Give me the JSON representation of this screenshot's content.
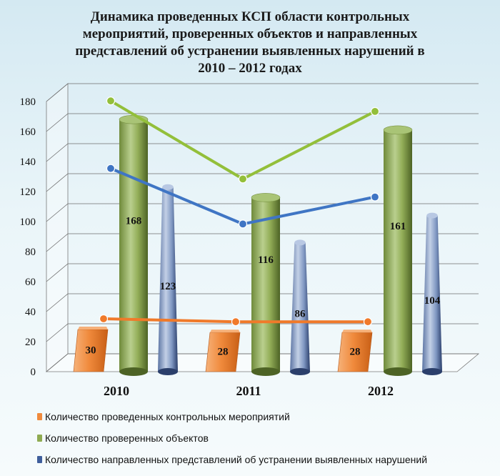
{
  "chart_data": {
    "type": "bar",
    "title_lines": [
      "Динамика проведенных КСП области контрольных",
      "мероприятий,  проверенных объектов и направленных",
      "представлений об устранении выявленных нарушений в",
      "2010 – 2012 годах"
    ],
    "categories": [
      "2010",
      "2011",
      "2012"
    ],
    "ylim": [
      0,
      180
    ],
    "yticks": [
      "0",
      "20",
      "40",
      "60",
      "80",
      "100",
      "120",
      "140",
      "160",
      "180"
    ],
    "series": [
      {
        "name": "Количество проведенных контрольных мероприятий",
        "values": [
          30,
          28,
          28
        ],
        "labels": [
          "30",
          "28",
          "28"
        ],
        "color": "#f08a3c",
        "shape": "box",
        "line_color": "#f07a2a"
      },
      {
        "name": "Количество проверенных объектов",
        "values": [
          168,
          116,
          161
        ],
        "labels": [
          "168",
          "116",
          "161"
        ],
        "color": "#8fab52",
        "shape": "cylinder",
        "line_color": "#93bf3a"
      },
      {
        "name": "Количество направленных представлений об устранении выявленных нарушений",
        "values": [
          123,
          86,
          104
        ],
        "labels": [
          "123",
          "86",
          "104"
        ],
        "color": "#8aa3c8",
        "shape": "cone",
        "line_color": "#3f75c4"
      }
    ],
    "legend_position": "bottom",
    "grid": true
  }
}
